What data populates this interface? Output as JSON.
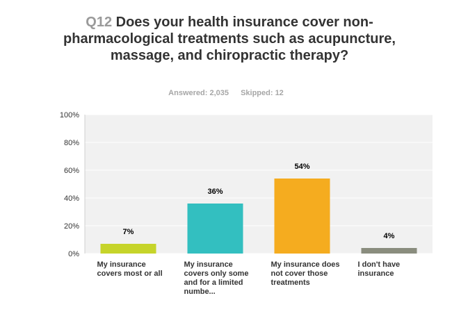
{
  "question": {
    "number": "Q12",
    "text": "Does your health insurance cover non-pharmacological treatments such as acupuncture, massage, and chiropractic therapy?"
  },
  "meta": {
    "answered": "Answered: 2,035",
    "skipped": "Skipped: 12"
  },
  "chart_data": {
    "type": "bar",
    "categories": [
      "My insurance covers most or all",
      "My insurance covers only some and for a limited numbe...",
      "My insurance does not cover those treatments",
      "I don't have insurance"
    ],
    "values": [
      7,
      36,
      54,
      4
    ],
    "value_labels": [
      "7%",
      "36%",
      "54%",
      "4%"
    ],
    "colors": [
      "#c6d42a",
      "#33bfc0",
      "#f5ac1f",
      "#8a8d7e"
    ],
    "ylim": [
      0,
      100
    ],
    "yticks": [
      0,
      20,
      40,
      60,
      80,
      100
    ],
    "ytick_labels": [
      "0%",
      "20%",
      "40%",
      "60%",
      "80%",
      "100%"
    ],
    "grid": true,
    "legend": "none"
  }
}
